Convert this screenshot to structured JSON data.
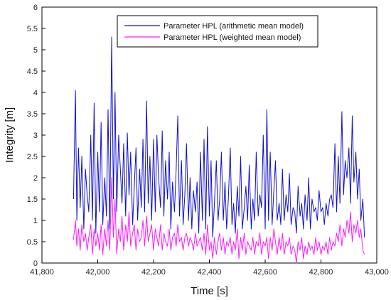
{
  "chart_data": {
    "type": "line",
    "title": "",
    "xlabel": "Time [s]",
    "ylabel": "Integrity [m]",
    "xlim": [
      41800,
      43000
    ],
    "ylim": [
      0,
      6
    ],
    "xticks": [
      41800,
      42000,
      42200,
      42400,
      42600,
      42800,
      43000
    ],
    "xtick_labels": [
      "41,800",
      "42,000",
      "42,200",
      "42,400",
      "42,600",
      "42,800",
      "43,000"
    ],
    "yticks": [
      0,
      0.5,
      1,
      1.5,
      2,
      2.5,
      3,
      3.5,
      4,
      4.5,
      5,
      5.5,
      6
    ],
    "ytick_labels": [
      "0",
      "0.5",
      "1",
      "1.5",
      "2",
      "2.5",
      "3",
      "3.5",
      "4",
      "4.5",
      "5",
      "5.5",
      "6"
    ],
    "grid": false,
    "legend_position": "top-center",
    "series": [
      {
        "name": "Parameter HPL (arithmetic mean model)",
        "color": "#1010d0",
        "x": [
          41913,
          41920,
          41925,
          41931,
          41937,
          41943,
          41950,
          41956,
          41962,
          41968,
          41975,
          41981,
          41987,
          41993,
          42000,
          42006,
          42012,
          42018,
          42025,
          42031,
          42037,
          42043,
          42050,
          42056,
          42062,
          42068,
          42075,
          42081,
          42087,
          42093,
          42100,
          42106,
          42112,
          42118,
          42125,
          42131,
          42137,
          42143,
          42150,
          42156,
          42162,
          42168,
          42175,
          42181,
          42187,
          42193,
          42200,
          42206,
          42212,
          42218,
          42225,
          42231,
          42237,
          42243,
          42250,
          42256,
          42262,
          42268,
          42275,
          42281,
          42287,
          42293,
          42300,
          42306,
          42312,
          42318,
          42325,
          42331,
          42337,
          42343,
          42350,
          42356,
          42362,
          42368,
          42375,
          42381,
          42387,
          42393,
          42400,
          42406,
          42412,
          42418,
          42425,
          42431,
          42437,
          42443,
          42450,
          42456,
          42462,
          42468,
          42475,
          42481,
          42487,
          42493,
          42500,
          42506,
          42512,
          42518,
          42525,
          42531,
          42537,
          42543,
          42550,
          42556,
          42562,
          42568,
          42575,
          42581,
          42587,
          42593,
          42600,
          42606,
          42612,
          42618,
          42625,
          42631,
          42637,
          42643,
          42650,
          42656,
          42662,
          42668,
          42675,
          42681,
          42687,
          42693,
          42700,
          42706,
          42712,
          42718,
          42725,
          42731,
          42737,
          42743,
          42750,
          42756,
          42762,
          42768,
          42775,
          42781,
          42787,
          42793,
          42800,
          42806,
          42812,
          42818,
          42825,
          42831,
          42837,
          42843,
          42850,
          42856,
          42862,
          42868,
          42875,
          42881,
          42887,
          42893,
          42900,
          42906,
          42912,
          42918,
          42925,
          42931,
          42937,
          42943,
          42950,
          42956
        ],
        "values": [
          1.5,
          4.05,
          1.0,
          2.7,
          1.3,
          2.5,
          0.8,
          2.2,
          1.6,
          1.2,
          3.0,
          1.0,
          3.75,
          0.7,
          2.6,
          1.2,
          3.3,
          0.9,
          2.0,
          1.1,
          3.6,
          0.8,
          5.3,
          1.5,
          4.0,
          1.2,
          3.0,
          2.2,
          1.4,
          2.8,
          1.1,
          3.05,
          1.6,
          2.6,
          0.9,
          1.8,
          2.7,
          1.0,
          2.2,
          1.3,
          2.9,
          1.2,
          3.8,
          1.4,
          2.5,
          1.0,
          2.9,
          1.2,
          3.0,
          2.0,
          1.3,
          3.1,
          1.1,
          2.4,
          1.5,
          2.6,
          0.8,
          1.9,
          1.2,
          2.2,
          3.45,
          1.1,
          2.4,
          0.9,
          1.6,
          2.8,
          1.0,
          2.0,
          0.8,
          1.7,
          1.2,
          1.9,
          0.7,
          2.6,
          1.0,
          2.9,
          0.8,
          3.2,
          1.1,
          2.4,
          0.6,
          1.4,
          2.4,
          1.0,
          1.5,
          2.6,
          1.0,
          1.9,
          0.8,
          1.5,
          2.7,
          0.9,
          1.4,
          0.7,
          1.8,
          1.1,
          2.5,
          0.8,
          1.3,
          1.8,
          1.0,
          2.3,
          0.8,
          1.5,
          1.0,
          2.6,
          1.1,
          1.6,
          1.3,
          3.0,
          0.8,
          3.6,
          1.0,
          2.6,
          0.9,
          1.7,
          2.4,
          1.0,
          1.4,
          0.9,
          2.2,
          1.0,
          1.6,
          1.2,
          2.1,
          0.9,
          1.3,
          1.2,
          0.7,
          1.8,
          1.1,
          1.4,
          0.8,
          1.6,
          1.0,
          2.0,
          0.8,
          1.5,
          1.2,
          1.3,
          1.0,
          1.7,
          1.2,
          1.3,
          0.9,
          1.4,
          1.1,
          1.5,
          1.6,
          1.3,
          2.8,
          1.2,
          2.5,
          1.4,
          3.55,
          1.6,
          2.4,
          2.0,
          2.7,
          1.4,
          3.45,
          1.9,
          2.6,
          1.5,
          2.2,
          1.0,
          1.5,
          0.6
        ]
      },
      {
        "name": "Parameter HPL (weighted mean model)",
        "color": "#ff1aff",
        "x": [
          41913,
          41920,
          41925,
          41931,
          41937,
          41943,
          41950,
          41956,
          41962,
          41968,
          41975,
          41981,
          41987,
          41993,
          42000,
          42006,
          42012,
          42018,
          42025,
          42031,
          42037,
          42043,
          42050,
          42056,
          42062,
          42068,
          42075,
          42081,
          42087,
          42093,
          42100,
          42106,
          42112,
          42118,
          42125,
          42131,
          42137,
          42143,
          42150,
          42156,
          42162,
          42168,
          42175,
          42181,
          42187,
          42193,
          42200,
          42206,
          42212,
          42218,
          42225,
          42231,
          42237,
          42243,
          42250,
          42256,
          42262,
          42268,
          42275,
          42281,
          42287,
          42293,
          42300,
          42306,
          42312,
          42318,
          42325,
          42331,
          42337,
          42343,
          42350,
          42356,
          42362,
          42368,
          42375,
          42381,
          42387,
          42393,
          42400,
          42406,
          42412,
          42418,
          42425,
          42431,
          42437,
          42443,
          42450,
          42456,
          42462,
          42468,
          42475,
          42481,
          42487,
          42493,
          42500,
          42506,
          42512,
          42518,
          42525,
          42531,
          42537,
          42543,
          42550,
          42556,
          42562,
          42568,
          42575,
          42581,
          42587,
          42593,
          42600,
          42606,
          42612,
          42618,
          42625,
          42631,
          42637,
          42643,
          42650,
          42656,
          42662,
          42668,
          42675,
          42681,
          42687,
          42693,
          42700,
          42706,
          42712,
          42718,
          42725,
          42731,
          42737,
          42743,
          42750,
          42756,
          42762,
          42768,
          42775,
          42781,
          42787,
          42793,
          42800,
          42806,
          42812,
          42818,
          42825,
          42831,
          42837,
          42843,
          42850,
          42856,
          42862,
          42868,
          42875,
          42881,
          42887,
          42893,
          42900,
          42906,
          42912,
          42918,
          42925,
          42931,
          42937,
          42943,
          42950,
          42956
        ],
        "values": [
          0.55,
          1.0,
          0.4,
          0.8,
          0.3,
          0.9,
          0.5,
          0.7,
          0.3,
          0.6,
          0.9,
          0.2,
          0.8,
          0.4,
          0.7,
          0.3,
          0.9,
          0.2,
          0.8,
          0.4,
          1.0,
          0.3,
          2.0,
          0.6,
          1.5,
          0.2,
          0.8,
          0.5,
          1.1,
          0.3,
          0.9,
          0.5,
          1.2,
          0.4,
          0.7,
          0.9,
          0.3,
          0.8,
          0.5,
          0.6,
          1.0,
          0.4,
          1.1,
          0.5,
          0.7,
          0.9,
          0.3,
          0.8,
          0.6,
          0.4,
          0.9,
          0.3,
          0.7,
          0.5,
          0.4,
          0.8,
          0.3,
          0.6,
          0.7,
          0.4,
          0.9,
          0.5,
          0.6,
          0.3,
          0.6,
          0.7,
          0.4,
          0.6,
          0.5,
          0.3,
          0.7,
          0.4,
          0.5,
          0.6,
          0.3,
          0.7,
          0.2,
          0.9,
          0.3,
          0.5,
          0.1,
          0.6,
          0.2,
          0.5,
          0.7,
          0.3,
          0.6,
          0.2,
          0.5,
          0.4,
          0.6,
          0.2,
          0.5,
          0.3,
          0.8,
          0.1,
          0.6,
          0.3,
          0.7,
          0.2,
          0.5,
          0.4,
          0.3,
          0.6,
          0.2,
          0.5,
          0.4,
          0.7,
          0.2,
          0.5,
          0.4,
          0.6,
          0.1,
          0.6,
          0.3,
          0.8,
          0.5,
          0.2,
          0.6,
          0.3,
          0.7,
          0.2,
          0.5,
          0.4,
          0.6,
          0.2,
          0.4,
          0.3,
          0.0,
          0.5,
          0.3,
          0.6,
          0.1,
          0.4,
          0.2,
          0.5,
          0.3,
          0.4,
          0.2,
          0.6,
          0.3,
          0.5,
          0.2,
          0.4,
          0.3,
          0.5,
          0.2,
          0.6,
          0.3,
          0.5,
          0.4,
          0.7,
          0.5,
          0.9,
          0.4,
          0.8,
          0.6,
          1.0,
          0.7,
          1.2,
          0.5,
          0.9,
          0.7,
          1.0,
          0.6,
          0.8,
          0.3,
          0.2
        ]
      }
    ]
  }
}
